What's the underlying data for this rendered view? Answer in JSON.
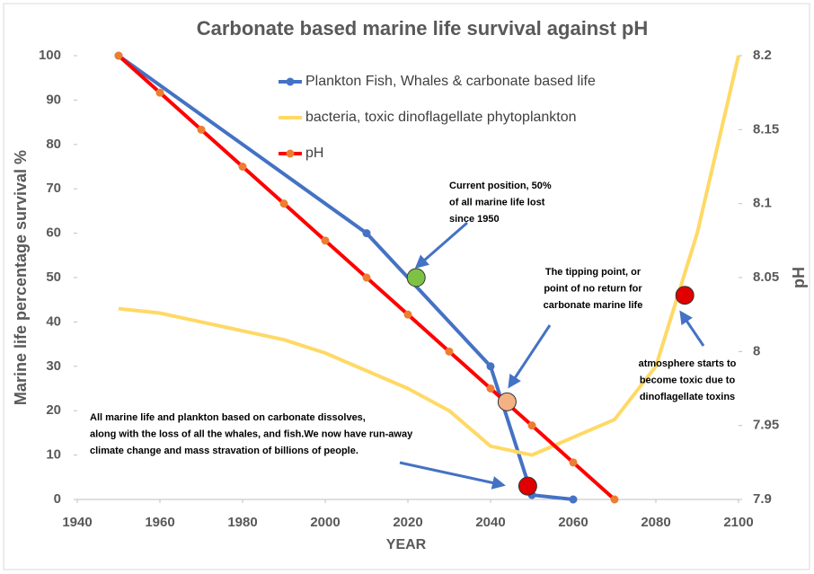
{
  "chart_data": {
    "type": "line",
    "title": "Carbonate based marine life survival against pH",
    "xlabel": "YEAR",
    "ylabel": "Marine life  percentage survival   %",
    "y2label": "pH",
    "xlim": [
      1940,
      2100
    ],
    "xticks": [
      1940,
      1960,
      1980,
      2000,
      2020,
      2040,
      2060,
      2080,
      2100
    ],
    "ylim": [
      0,
      100
    ],
    "yticks": [
      0,
      10,
      20,
      30,
      40,
      50,
      60,
      70,
      80,
      90,
      100
    ],
    "y2lim": [
      7.9,
      8.2
    ],
    "y2ticks": [
      7.9,
      7.95,
      8,
      8.05,
      8.1,
      8.15,
      8.2
    ],
    "grid": false,
    "series": [
      {
        "name": "Plankton Fish, Whales & carbonate based life",
        "color": "#4472c4",
        "markers": true,
        "x": [
          1950,
          2010,
          2040,
          2050,
          2060
        ],
        "values": [
          100,
          60,
          30,
          1,
          0
        ]
      },
      {
        "name": "bacteria, toxic dinoflagellate phytoplankton",
        "color": "#ffd966",
        "markers": false,
        "x": [
          1950,
          1960,
          1970,
          1980,
          1990,
          2000,
          2010,
          2020,
          2030,
          2040,
          2050,
          2060,
          2070,
          2080,
          2090,
          2100
        ],
        "values": [
          43,
          42,
          40,
          38,
          36,
          33,
          29,
          25,
          20,
          12,
          10,
          14,
          18,
          30,
          60,
          100
        ]
      },
      {
        "name": "pH",
        "color": "#ff0000",
        "markers": true,
        "marker_color": "#ed7d31",
        "axis": "y2",
        "x": [
          1950,
          1960,
          1970,
          1980,
          1990,
          2000,
          2010,
          2020,
          2030,
          2040,
          2050,
          2060,
          2070
        ],
        "values": [
          8.2,
          8.175,
          8.15,
          8.125,
          8.1,
          8.075,
          8.05,
          8.025,
          8.0,
          7.975,
          7.95,
          7.925,
          7.9
        ]
      }
    ],
    "highlights": [
      {
        "x": 2022,
        "y": 50,
        "color": "#7dc242"
      },
      {
        "x": 2044,
        "y": 22,
        "color": "#f4b183"
      },
      {
        "x": 2049,
        "y": 3,
        "color": "#e00000"
      },
      {
        "x": 2087,
        "y": 46,
        "color": "#e00000"
      }
    ],
    "annotations": [
      {
        "lines": [
          "Current position, 50%",
          "of all marine life lost",
          "since 1950"
        ]
      },
      {
        "lines": [
          "The tipping point, or",
          "point of no return for",
          "carbonate marine life"
        ]
      },
      {
        "lines": [
          "All marine life and plankton based on carbonate dissolves,",
          "along with the loss of all the whales, and fish.We now have run-away",
          "climate change and mass stravation of billions of people."
        ]
      },
      {
        "lines": [
          "atmosphere starts to",
          "become toxic due to",
          "dinoflagellate toxins"
        ]
      }
    ]
  }
}
